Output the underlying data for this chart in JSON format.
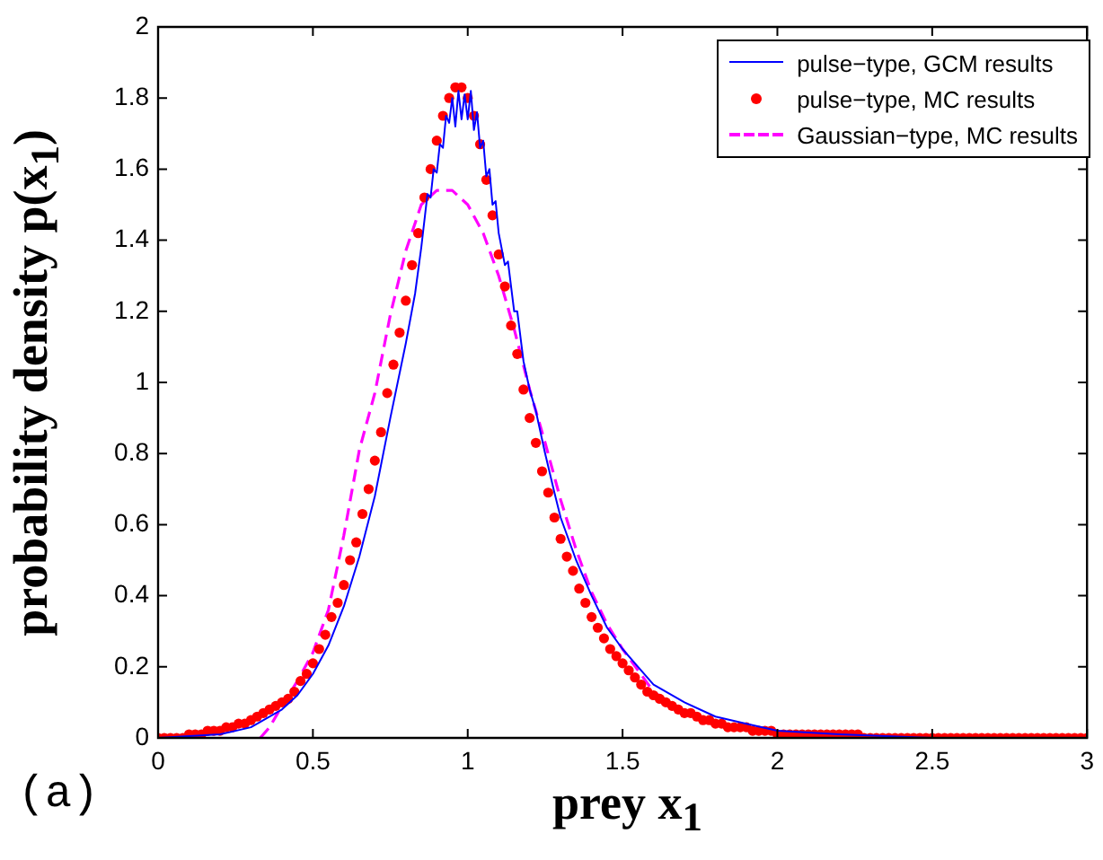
{
  "chart_data": {
    "type": "line",
    "xlabel": "prey x$_{1}$",
    "ylabel": "probability density p(x$_{1}$)",
    "xlim": [
      0,
      3
    ],
    "ylim": [
      0,
      2
    ],
    "xticks": [
      0,
      0.5,
      1,
      1.5,
      2,
      2.5,
      3
    ],
    "yticks": [
      0,
      0.2,
      0.4,
      0.6,
      0.8,
      1,
      1.2,
      1.4,
      1.6,
      1.8,
      2
    ],
    "grid": false,
    "legend": "top right",
    "annotations": [
      "(a)"
    ],
    "series": [
      {
        "name": "pulse−type, GCM results",
        "color": "#0000ff",
        "marker": "none",
        "line_style": "solid",
        "x": [
          0,
          0.2,
          0.3,
          0.4,
          0.45,
          0.5,
          0.55,
          0.6,
          0.65,
          0.7,
          0.75,
          0.8,
          0.83,
          0.85,
          0.87,
          0.88,
          0.89,
          0.9,
          0.91,
          0.92,
          0.93,
          0.94,
          0.95,
          0.96,
          0.97,
          0.98,
          0.99,
          1,
          1.01,
          1.02,
          1.03,
          1.04,
          1.05,
          1.06,
          1.07,
          1.08,
          1.09,
          1.1,
          1.12,
          1.13,
          1.15,
          1.16,
          1.18,
          1.2,
          1.22,
          1.25,
          1.28,
          1.3,
          1.35,
          1.4,
          1.45,
          1.5,
          1.55,
          1.6,
          1.7,
          1.8,
          1.9,
          2,
          2.2,
          2.5
        ],
        "values": [
          0,
          0.01,
          0.03,
          0.08,
          0.12,
          0.18,
          0.26,
          0.37,
          0.51,
          0.68,
          0.9,
          1.11,
          1.25,
          1.38,
          1.53,
          1.52,
          1.6,
          1.59,
          1.67,
          1.66,
          1.75,
          1.73,
          1.8,
          1.72,
          1.82,
          1.74,
          1.81,
          1.74,
          1.82,
          1.71,
          1.76,
          1.66,
          1.68,
          1.58,
          1.6,
          1.5,
          1.51,
          1.42,
          1.33,
          1.34,
          1.2,
          1.2,
          1.06,
          0.98,
          0.92,
          0.8,
          0.69,
          0.62,
          0.5,
          0.4,
          0.31,
          0.25,
          0.2,
          0.15,
          0.1,
          0.06,
          0.04,
          0.02,
          0.01,
          0
        ]
      },
      {
        "name": "pulse−type, MC results",
        "type": "scatter",
        "color": "#ff0000",
        "marker": "circle",
        "x": [
          0,
          0.02,
          0.04,
          0.06,
          0.08,
          0.1,
          0.12,
          0.14,
          0.16,
          0.18,
          0.2,
          0.22,
          0.24,
          0.26,
          0.28,
          0.3,
          0.32,
          0.34,
          0.36,
          0.38,
          0.4,
          0.42,
          0.44,
          0.46,
          0.48,
          0.5,
          0.52,
          0.54,
          0.56,
          0.58,
          0.6,
          0.62,
          0.64,
          0.66,
          0.68,
          0.7,
          0.72,
          0.74,
          0.76,
          0.78,
          0.8,
          0.82,
          0.84,
          0.86,
          0.88,
          0.9,
          0.92,
          0.94,
          0.96,
          0.98,
          1,
          1.02,
          1.04,
          1.06,
          1.08,
          1.1,
          1.12,
          1.14,
          1.16,
          1.18,
          1.2,
          1.22,
          1.24,
          1.26,
          1.28,
          1.3,
          1.32,
          1.34,
          1.36,
          1.38,
          1.4,
          1.42,
          1.44,
          1.46,
          1.48,
          1.5,
          1.52,
          1.54,
          1.56,
          1.58,
          1.6,
          1.62,
          1.64,
          1.66,
          1.68,
          1.7,
          1.72,
          1.74,
          1.76,
          1.78,
          1.8,
          1.82,
          1.84,
          1.86,
          1.88,
          1.9,
          1.92,
          1.94,
          1.96,
          1.98,
          2,
          2.02,
          2.04,
          2.06,
          2.08,
          2.1,
          2.12,
          2.14,
          2.16,
          2.18,
          2.2,
          2.22,
          2.24,
          2.26,
          2.28,
          2.3,
          2.32,
          2.34,
          2.36,
          2.38,
          2.4,
          2.42,
          2.44,
          2.46,
          2.48,
          2.5,
          2.52,
          2.54,
          2.56,
          2.58,
          2.6,
          2.62,
          2.64,
          2.66,
          2.68,
          2.7,
          2.72,
          2.74,
          2.76,
          2.78,
          2.8,
          2.82,
          2.84,
          2.86,
          2.88,
          2.9,
          2.92,
          2.94,
          2.96,
          2.98,
          3
        ],
        "values": [
          0,
          0,
          0,
          0,
          0,
          0.01,
          0.01,
          0.01,
          0.02,
          0.02,
          0.02,
          0.03,
          0.03,
          0.04,
          0.04,
          0.05,
          0.06,
          0.07,
          0.08,
          0.09,
          0.1,
          0.11,
          0.13,
          0.16,
          0.18,
          0.21,
          0.25,
          0.29,
          0.34,
          0.38,
          0.43,
          0.5,
          0.55,
          0.63,
          0.7,
          0.78,
          0.86,
          0.97,
          1.05,
          1.14,
          1.23,
          1.33,
          1.42,
          1.52,
          1.6,
          1.68,
          1.75,
          1.8,
          1.83,
          1.83,
          1.8,
          1.75,
          1.67,
          1.57,
          1.47,
          1.36,
          1.27,
          1.16,
          1.08,
          0.98,
          0.9,
          0.83,
          0.75,
          0.69,
          0.62,
          0.56,
          0.51,
          0.47,
          0.42,
          0.38,
          0.34,
          0.31,
          0.28,
          0.25,
          0.23,
          0.21,
          0.19,
          0.17,
          0.15,
          0.13,
          0.12,
          0.11,
          0.1,
          0.09,
          0.08,
          0.07,
          0.07,
          0.06,
          0.05,
          0.05,
          0.04,
          0.04,
          0.03,
          0.03,
          0.03,
          0.03,
          0.02,
          0.02,
          0.02,
          0.02,
          0.01,
          0.01,
          0.01,
          0.01,
          0.01,
          0.01,
          0.01,
          0.01,
          0.01,
          0.01,
          0.01,
          0.01,
          0.01,
          0.01,
          0,
          0,
          0,
          0,
          0,
          0,
          0,
          0,
          0,
          0,
          0,
          0,
          0,
          0,
          0,
          0,
          0,
          0,
          0,
          0,
          0,
          0,
          0,
          0,
          0,
          0,
          0,
          0,
          0,
          0,
          0,
          0,
          0,
          0,
          0,
          0,
          0
        ]
      },
      {
        "name": "Gaussian−type, MC results",
        "color": "#ff00ff",
        "marker": "none",
        "line_style": "dashed",
        "x": [
          0.33,
          0.36,
          0.4,
          0.45,
          0.5,
          0.55,
          0.6,
          0.65,
          0.7,
          0.75,
          0.8,
          0.85,
          0.9,
          0.95,
          1,
          1.05,
          1.1,
          1.15,
          1.2,
          1.25,
          1.3,
          1.35,
          1.4,
          1.45,
          1.5,
          1.6,
          1.7
        ],
        "values": [
          0,
          0.03,
          0.09,
          0.16,
          0.24,
          0.36,
          0.57,
          0.81,
          0.97,
          1.19,
          1.37,
          1.5,
          1.54,
          1.54,
          1.5,
          1.42,
          1.3,
          1.15,
          0.98,
          0.83,
          0.67,
          0.53,
          0.41,
          0.32,
          0.25,
          0.13,
          0.07
        ]
      }
    ]
  }
}
